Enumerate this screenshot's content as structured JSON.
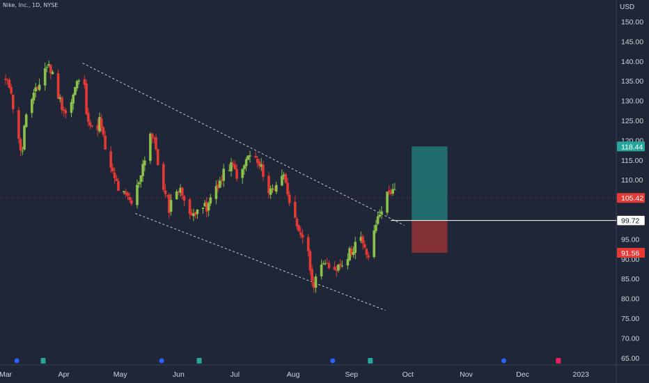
{
  "header": {
    "title": "Nike, Inc., 1D, NYSE"
  },
  "colors": {
    "background": "#1f2637",
    "up": "#8bc34a",
    "down": "#e53935",
    "axis_text": "#d1d4dc",
    "profit_zone": "#26a69a",
    "loss_zone": "#e53935"
  },
  "chart_data": {
    "type": "candlestick",
    "currency": "USD",
    "ylim": [
      62,
      155
    ],
    "y_ticks": [
      "65.00",
      "70.00",
      "75.00",
      "80.00",
      "85.00",
      "90.00",
      "95.00",
      "100.00",
      "105.00",
      "110.00",
      "115.00",
      "120.00",
      "125.00",
      "130.00",
      "135.00",
      "140.00",
      "145.00",
      "150.00"
    ],
    "x_ticks": [
      "Mar",
      "Apr",
      "May",
      "Jun",
      "Jul",
      "Aug",
      "Sep",
      "Oct",
      "Nov",
      "Dec",
      "2023"
    ],
    "x_tick_days": [
      0,
      31,
      61,
      92,
      122,
      153,
      184,
      214,
      245,
      275,
      306
    ],
    "price_labels": [
      {
        "value": 118.44,
        "text": "118.44",
        "style": "green"
      },
      {
        "value": 105.42,
        "text": "105.42",
        "style": "red"
      },
      {
        "value": 99.72,
        "text": "99.72",
        "style": "white"
      },
      {
        "value": 91.56,
        "text": "91.56",
        "style": "red"
      }
    ],
    "current_price": 105.42,
    "trendlines": [
      {
        "from": [
          41,
          139.5
        ],
        "to": [
          212,
          98.5
        ]
      },
      {
        "from": [
          69,
          101.5
        ],
        "to": [
          202,
          77
        ]
      }
    ],
    "position": {
      "entry": 99.72,
      "target": 118.44,
      "stop": 91.56,
      "start_day": 216,
      "end_day": 235
    },
    "event_markers": [
      {
        "day": 6,
        "kind": "dividend"
      },
      {
        "day": 20,
        "kind": "earnings"
      },
      {
        "day": 83,
        "kind": "dividend"
      },
      {
        "day": 103,
        "kind": "earnings"
      },
      {
        "day": 174,
        "kind": "dividend"
      },
      {
        "day": 194,
        "kind": "earnings"
      },
      {
        "day": 265,
        "kind": "dividend"
      },
      {
        "day": 294,
        "kind": "earnings"
      }
    ],
    "anchors": [
      [
        0,
        135,
        2
      ],
      [
        3,
        133,
        3
      ],
      [
        6,
        120,
        4
      ],
      [
        9,
        118,
        4
      ],
      [
        11,
        127,
        3
      ],
      [
        14,
        130,
        3
      ],
      [
        17,
        133,
        3
      ],
      [
        20,
        138,
        3
      ],
      [
        23,
        139,
        3
      ],
      [
        26,
        135,
        3
      ],
      [
        29,
        130,
        3
      ],
      [
        33,
        126,
        3
      ],
      [
        37,
        133,
        3
      ],
      [
        41,
        138,
        3
      ],
      [
        43,
        128,
        3
      ],
      [
        46,
        122,
        4
      ],
      [
        50,
        125,
        3
      ],
      [
        53,
        118,
        3
      ],
      [
        56,
        112,
        4
      ],
      [
        60,
        108,
        4
      ],
      [
        63,
        106,
        3
      ],
      [
        67,
        104,
        3
      ],
      [
        70,
        108,
        3
      ],
      [
        74,
        116,
        4
      ],
      [
        77,
        122,
        3
      ],
      [
        80,
        118,
        3
      ],
      [
        83,
        108,
        4
      ],
      [
        87,
        103,
        3
      ],
      [
        91,
        108,
        3
      ],
      [
        95,
        106,
        3
      ],
      [
        99,
        100,
        3
      ],
      [
        103,
        105,
        3
      ],
      [
        107,
        102,
        3
      ],
      [
        111,
        108,
        3
      ],
      [
        115,
        110,
        3
      ],
      [
        118,
        114,
        3
      ],
      [
        121,
        113,
        3
      ],
      [
        125,
        110,
        3
      ],
      [
        128,
        115,
        3
      ],
      [
        131,
        117,
        3
      ],
      [
        134,
        114,
        3
      ],
      [
        137,
        112,
        3
      ],
      [
        140,
        107,
        3
      ],
      [
        143,
        108,
        3
      ],
      [
        146,
        112,
        3
      ],
      [
        149,
        110,
        3
      ],
      [
        152,
        103,
        3
      ],
      [
        155,
        97,
        3
      ],
      [
        157,
        95,
        3
      ],
      [
        160,
        97,
        3
      ],
      [
        163,
        83,
        3
      ],
      [
        165,
        85,
        2
      ],
      [
        168,
        90,
        3
      ],
      [
        172,
        87,
        3
      ],
      [
        176,
        88,
        3
      ],
      [
        180,
        90,
        3
      ],
      [
        184,
        92,
        3
      ],
      [
        188,
        96,
        3
      ],
      [
        191,
        92,
        3
      ],
      [
        194,
        90,
        3
      ],
      [
        197,
        99,
        3
      ],
      [
        200,
        103,
        3
      ],
      [
        203,
        106,
        3
      ],
      [
        206,
        108,
        3
      ],
      [
        208,
        105,
        3
      ]
    ]
  }
}
